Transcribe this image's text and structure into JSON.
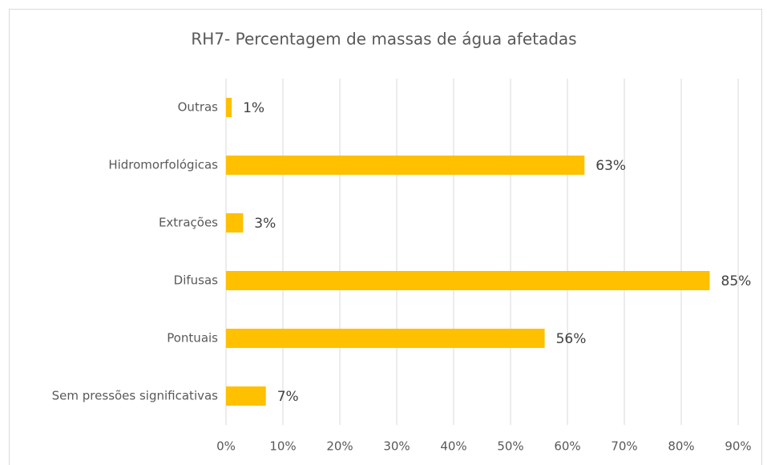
{
  "chart_data": {
    "type": "bar",
    "orientation": "horizontal",
    "title": "RH7- Percentagem de massas de água afetadas",
    "categories": [
      "Outras",
      "Hidromorfológicas",
      "Extrações",
      "Difusas",
      "Pontuais",
      "Sem pressões significativas"
    ],
    "values": [
      1,
      63,
      3,
      85,
      56,
      7
    ],
    "value_labels": [
      "1%",
      "63%",
      "3%",
      "85%",
      "56%",
      "7%"
    ],
    "color": "#ffc000",
    "xlim": [
      0,
      90
    ],
    "xticks": [
      {
        "value": 0,
        "label": "0%"
      },
      {
        "value": 10,
        "label": "10%"
      },
      {
        "value": 20,
        "label": "20%"
      },
      {
        "value": 30,
        "label": "30%"
      },
      {
        "value": 40,
        "label": "40%"
      },
      {
        "value": 50,
        "label": "50%"
      },
      {
        "value": 60,
        "label": "60%"
      },
      {
        "value": 70,
        "label": "70%"
      },
      {
        "value": 80,
        "label": "80%"
      },
      {
        "value": 90,
        "label": "90%"
      }
    ],
    "grid": true
  }
}
